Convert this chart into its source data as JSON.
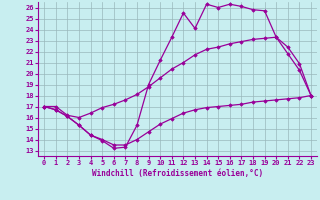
{
  "xlabel": "Windchill (Refroidissement éolien,°C)",
  "bg_color": "#c8eef0",
  "line_color": "#990099",
  "xlim": [
    -0.5,
    23.5
  ],
  "ylim": [
    12.5,
    26.5
  ],
  "xticks": [
    0,
    1,
    2,
    3,
    4,
    5,
    6,
    7,
    8,
    9,
    10,
    11,
    12,
    13,
    14,
    15,
    16,
    17,
    18,
    19,
    20,
    21,
    22,
    23
  ],
  "yticks": [
    13,
    14,
    15,
    16,
    17,
    18,
    19,
    20,
    21,
    22,
    23,
    24,
    25,
    26
  ],
  "line1_x": [
    0,
    1,
    2,
    3,
    4,
    5,
    6,
    7,
    8,
    9,
    10,
    11,
    12,
    13,
    14,
    15,
    16,
    17,
    18,
    19,
    20,
    21,
    22,
    23
  ],
  "line1_y": [
    17.0,
    16.7,
    16.1,
    15.3,
    14.4,
    13.9,
    13.2,
    13.3,
    15.3,
    19.0,
    21.2,
    23.3,
    25.5,
    24.1,
    26.3,
    26.0,
    26.3,
    26.1,
    25.8,
    25.7,
    23.3,
    21.8,
    20.3,
    18.0
  ],
  "line2_x": [
    0,
    1,
    2,
    3,
    4,
    5,
    6,
    7,
    8,
    9,
    10,
    11,
    12,
    13,
    14,
    15,
    16,
    17,
    18,
    19,
    20,
    21,
    22,
    23
  ],
  "line2_y": [
    17.0,
    17.0,
    16.2,
    16.0,
    16.4,
    16.9,
    17.2,
    17.6,
    18.1,
    18.8,
    19.6,
    20.4,
    21.0,
    21.7,
    22.2,
    22.4,
    22.7,
    22.9,
    23.1,
    23.2,
    23.3,
    22.4,
    20.9,
    18.0
  ],
  "line3_x": [
    0,
    1,
    2,
    3,
    4,
    5,
    6,
    7,
    8,
    9,
    10,
    11,
    12,
    13,
    14,
    15,
    16,
    17,
    18,
    19,
    20,
    21,
    22,
    23
  ],
  "line3_y": [
    17.0,
    16.7,
    16.1,
    15.3,
    14.4,
    14.0,
    13.5,
    13.5,
    14.0,
    14.7,
    15.4,
    15.9,
    16.4,
    16.7,
    16.9,
    17.0,
    17.1,
    17.2,
    17.4,
    17.5,
    17.6,
    17.7,
    17.8,
    18.0
  ],
  "marker": "D",
  "markersize": 1.8,
  "linewidth": 0.9,
  "grid_color": "#9ab8bb",
  "xlabel_fontsize": 5.5,
  "tick_fontsize": 5.0
}
